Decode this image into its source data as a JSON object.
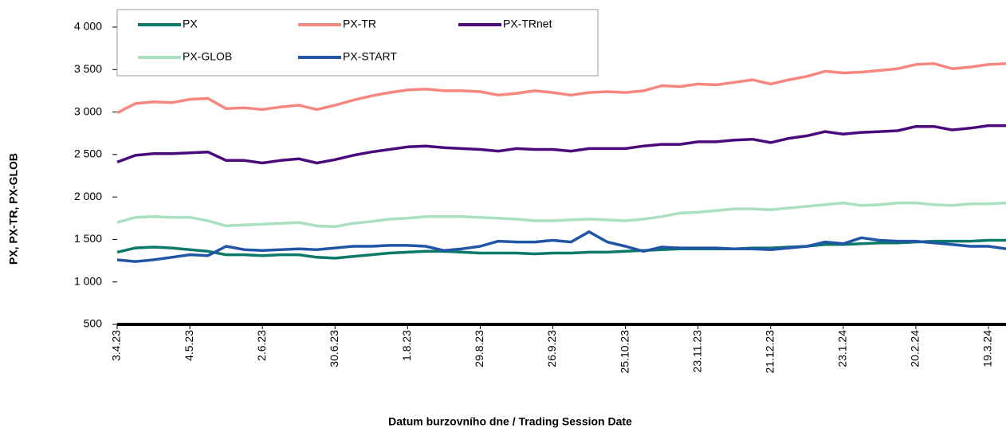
{
  "chart_data": {
    "type": "line",
    "y_label": "PX, PX-TR, PX-GLOB",
    "x_label": "Datum burzovního dne / Trading Session Date",
    "legend": "upper left",
    "categories": [
      "3.4.23",
      null,
      null,
      null,
      "4.5.23",
      null,
      null,
      null,
      "2.6.23",
      null,
      null,
      null,
      "30.6.23",
      null,
      null,
      null,
      "1.8.23",
      null,
      null,
      null,
      "29.8.23",
      null,
      null,
      null,
      "26.9.23",
      null,
      null,
      null,
      "25.10.23",
      null,
      null,
      null,
      "23.11.23",
      null,
      null,
      null,
      "21.12.23",
      null,
      null,
      null,
      "23.1.24",
      null,
      null,
      null,
      "20.2.24",
      null,
      null,
      null,
      "19.3.24",
      null
    ],
    "ylim": [
      500,
      4000
    ],
    "yticks": [
      500,
      {
        "value": 1000,
        "label": "1 000"
      },
      {
        "value": 1500,
        "label": "1 500"
      },
      {
        "value": 2000,
        "label": "2 000"
      },
      {
        "value": 2500,
        "label": "2 500"
      },
      {
        "value": 3000,
        "label": "3 000"
      },
      {
        "value": 3500,
        "label": "3 500"
      },
      {
        "value": 4000,
        "label": "4 000"
      }
    ],
    "series": [
      {
        "name": "PX",
        "color": "#0b7a69",
        "values": [
          1350,
          1400,
          1410,
          1400,
          1380,
          1360,
          1320,
          1320,
          1310,
          1320,
          1320,
          1290,
          1280,
          1300,
          1320,
          1340,
          1350,
          1360,
          1360,
          1350,
          1340,
          1340,
          1340,
          1330,
          1340,
          1340,
          1350,
          1350,
          1360,
          1370,
          1380,
          1390,
          1390,
          1390,
          1390,
          1400,
          1400,
          1410,
          1420,
          1440,
          1440,
          1450,
          1460,
          1460,
          1470,
          1480,
          1480,
          1480,
          1490,
          1490
        ]
      },
      {
        "name": "PX-TR",
        "color": "#f6877e",
        "values": [
          2990,
          3100,
          3120,
          3110,
          3150,
          3160,
          3040,
          3050,
          3030,
          3060,
          3080,
          3030,
          3080,
          3140,
          3190,
          3230,
          3260,
          3270,
          3250,
          3250,
          3240,
          3200,
          3220,
          3250,
          3230,
          3200,
          3230,
          3240,
          3230,
          3250,
          3310,
          3300,
          3330,
          3320,
          3350,
          3380,
          3330,
          3380,
          3420,
          3480,
          3460,
          3470,
          3490,
          3510,
          3560,
          3570,
          3510,
          3530,
          3560,
          3570
        ]
      },
      {
        "name": "PX-TRnet",
        "color": "#4b0a7c",
        "values": [
          2410,
          2490,
          2510,
          2510,
          2520,
          2530,
          2430,
          2430,
          2400,
          2430,
          2450,
          2400,
          2440,
          2490,
          2530,
          2560,
          2590,
          2600,
          2580,
          2570,
          2560,
          2540,
          2570,
          2560,
          2560,
          2540,
          2570,
          2570,
          2570,
          2600,
          2620,
          2620,
          2650,
          2650,
          2670,
          2680,
          2640,
          2690,
          2720,
          2770,
          2740,
          2760,
          2770,
          2780,
          2830,
          2830,
          2790,
          2810,
          2840,
          2840
        ]
      },
      {
        "name": "PX-GLOB",
        "color": "#a8e0c0",
        "values": [
          1700,
          1760,
          1770,
          1760,
          1760,
          1720,
          1660,
          1670,
          1680,
          1690,
          1700,
          1660,
          1650,
          1690,
          1710,
          1740,
          1750,
          1770,
          1770,
          1770,
          1760,
          1750,
          1740,
          1720,
          1720,
          1730,
          1740,
          1730,
          1720,
          1740,
          1770,
          1810,
          1820,
          1840,
          1860,
          1860,
          1850,
          1870,
          1890,
          1910,
          1930,
          1900,
          1910,
          1930,
          1930,
          1910,
          1900,
          1920,
          1920,
          1930
        ]
      },
      {
        "name": "PX-START",
        "color": "#2155a6",
        "values": [
          1260,
          1240,
          1260,
          1290,
          1320,
          1310,
          1420,
          1380,
          1370,
          1380,
          1390,
          1380,
          1400,
          1420,
          1420,
          1430,
          1430,
          1420,
          1370,
          1390,
          1420,
          1480,
          1470,
          1470,
          1490,
          1470,
          1590,
          1470,
          1420,
          1360,
          1410,
          1400,
          1400,
          1400,
          1390,
          1390,
          1380,
          1400,
          1420,
          1470,
          1450,
          1520,
          1490,
          1480,
          1480,
          1460,
          1440,
          1420,
          1420,
          1390
        ]
      }
    ]
  }
}
